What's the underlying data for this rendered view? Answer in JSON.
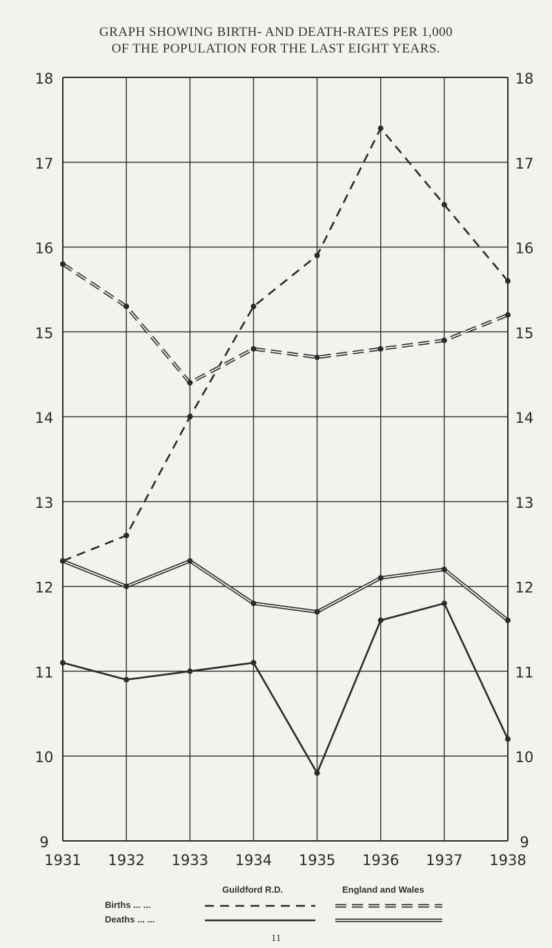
{
  "chart_data": {
    "type": "line",
    "title": "GRAPH SHOWING BIRTH- AND DEATH-RATES PER 1,000",
    "subtitle": "OF THE POPULATION FOR THE LAST EIGHT YEARS.",
    "categories": [
      "1931",
      "1932",
      "1933",
      "1934",
      "1935",
      "1936",
      "1937",
      "1938"
    ],
    "ylim": [
      9,
      18
    ],
    "yticks": [
      "9",
      "10",
      "11",
      "12",
      "13",
      "14",
      "15",
      "16",
      "17",
      "18"
    ],
    "grid": true,
    "series": [
      {
        "name": "Births",
        "group": "Guildford R.D.",
        "style": "dashed-single",
        "values": [
          12.3,
          12.6,
          14.0,
          15.3,
          15.9,
          17.4,
          16.5,
          15.6
        ]
      },
      {
        "name": "Births",
        "group": "England and Wales",
        "style": "dashed-double",
        "values": [
          15.8,
          15.3,
          14.4,
          14.8,
          14.7,
          14.8,
          14.9,
          15.2
        ]
      },
      {
        "name": "Deaths",
        "group": "Guildford R.D.",
        "style": "solid-single",
        "values": [
          11.1,
          10.9,
          11.0,
          11.1,
          9.8,
          11.6,
          11.8,
          10.2
        ]
      },
      {
        "name": "Deaths",
        "group": "England and Wales",
        "style": "solid-double",
        "values": [
          12.3,
          12.0,
          12.3,
          11.8,
          11.7,
          12.1,
          12.2,
          11.6
        ]
      }
    ],
    "legend": {
      "position": "bottom",
      "columns": [
        "Guildford R.D.",
        "England and Wales"
      ],
      "rows": [
        "Births ... ...",
        "Deaths ... ..."
      ]
    }
  },
  "page_number": "11",
  "colors": {
    "ink": "#2a2a2a",
    "paper": "#f3f2ef"
  }
}
